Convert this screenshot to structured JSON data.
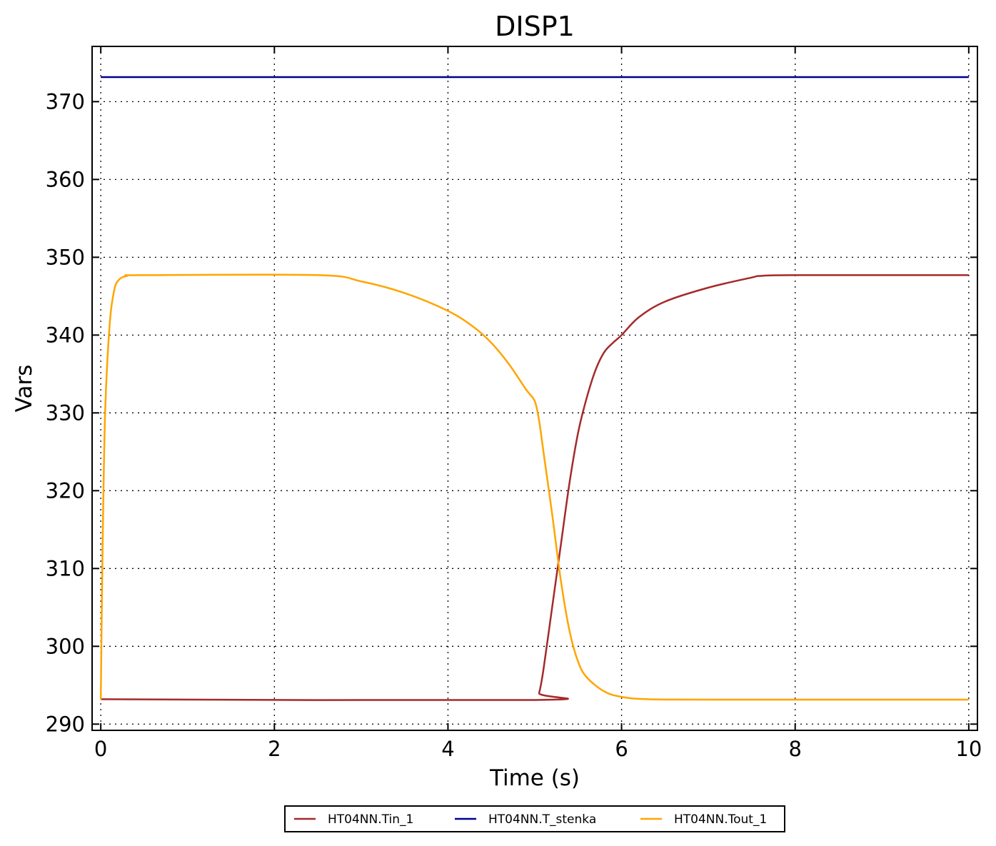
{
  "chart_data": {
    "type": "line",
    "title": "DISP1",
    "xlabel": "Time (s)",
    "ylabel": "Vars",
    "xlim": [
      -0.1,
      10.1
    ],
    "ylim": [
      289.2,
      377.1
    ],
    "xticks": [
      0,
      2,
      4,
      6,
      8,
      10
    ],
    "yticks": [
      290,
      300,
      310,
      320,
      330,
      340,
      350,
      360,
      370
    ],
    "grid": true,
    "legend_position": "bottom-center",
    "series": [
      {
        "name": "HT04NN.Tin_1",
        "color": "#a52a2a",
        "x": [
          0,
          5.0,
          5.05,
          5.1,
          5.2,
          5.3,
          5.4,
          5.5,
          5.6,
          5.7,
          5.8,
          5.9,
          6.0,
          6.2,
          6.5,
          7.0,
          7.5,
          7.6,
          8.0,
          10.0
        ],
        "y": [
          293.2,
          293.1,
          294,
          297,
          305,
          313,
          321,
          327.5,
          332,
          335.5,
          337.8,
          339,
          340,
          342.3,
          344.3,
          346.1,
          347.4,
          347.6,
          347.7,
          347.7
        ]
      },
      {
        "name": "HT04NN.T_stenka",
        "color": "#00008b",
        "x": [
          0,
          10
        ],
        "y": [
          373.15,
          373.15
        ]
      },
      {
        "name": "HT04NN.Tout_1",
        "color": "#ffa500",
        "x": [
          0,
          0.02,
          0.05,
          0.1,
          0.15,
          0.2,
          0.3,
          0.5,
          2.5,
          3.0,
          3.5,
          4.0,
          4.3,
          4.5,
          4.7,
          4.9,
          5.0,
          5.05,
          5.1,
          5.2,
          5.3,
          5.4,
          5.5,
          5.6,
          5.8,
          6.0,
          6.3,
          7.0,
          10.0
        ],
        "y": [
          293.15,
          312,
          330,
          341,
          345.5,
          347,
          347.6,
          347.7,
          347.7,
          346.9,
          345.4,
          343.1,
          341,
          339,
          336.3,
          333,
          331.5,
          329,
          325,
          317,
          308.5,
          302,
          298,
          296,
          294.2,
          293.5,
          293.2,
          293.15,
          293.15
        ]
      }
    ]
  }
}
